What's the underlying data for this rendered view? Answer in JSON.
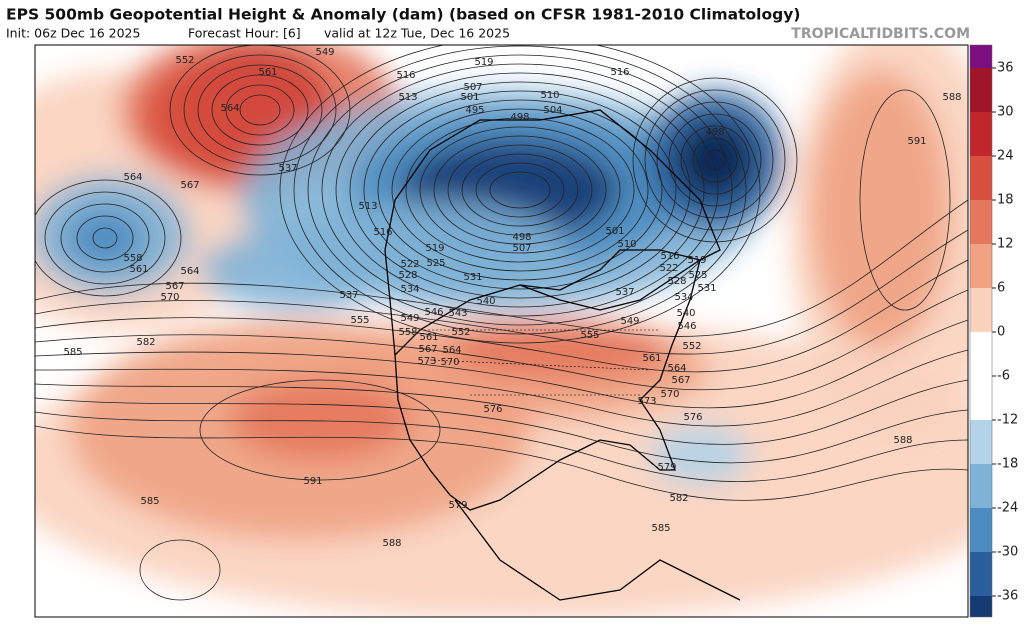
{
  "header": {
    "title": "EPS 500mb Geopotential Height & Anomaly (dam) (based on CFSR 1981-2010 Climatology)",
    "init": "Init: 06z Dec 16 2025",
    "forecast_hour": "Forecast Hour: [6]",
    "valid": "valid at 12z Tue, Dec 16 2025"
  },
  "watermark": "TROPICALTIDBITS.COM",
  "colorbar": {
    "ticks": [
      36,
      30,
      24,
      18,
      12,
      6,
      0,
      -6,
      -12,
      -18,
      -24,
      -30,
      -36
    ],
    "colors": [
      "#7b0f7f",
      "#a11528",
      "#c1272d",
      "#d8503f",
      "#e4775d",
      "#f0a283",
      "#f9d2bd",
      "#ffffff",
      "#ffffff",
      "#b3d3e8",
      "#7fb2d6",
      "#4b8bc0",
      "#2a5f9c",
      "#163b72",
      "#0c2350"
    ]
  },
  "contour_labels": [
    552,
    549,
    561,
    564,
    567,
    564,
    558,
    561,
    564,
    567,
    570,
    537,
    516,
    519,
    516,
    513,
    507,
    501,
    495,
    510,
    504,
    498,
    498,
    591,
    588,
    513,
    516,
    519,
    525,
    531,
    537,
    555,
    540,
    543,
    549,
    546,
    558,
    561,
    567,
    564,
    573,
    570,
    576,
    582,
    585,
    591,
    585,
    588,
    579,
    585,
    582,
    579,
    576,
    573,
    570,
    567,
    564,
    561,
    549,
    537,
    501,
    510,
    516,
    522,
    528,
    534,
    540,
    546,
    552,
    588,
    519,
    525,
    531,
    555,
    528,
    522,
    534,
    552,
    507,
    498
  ]
}
